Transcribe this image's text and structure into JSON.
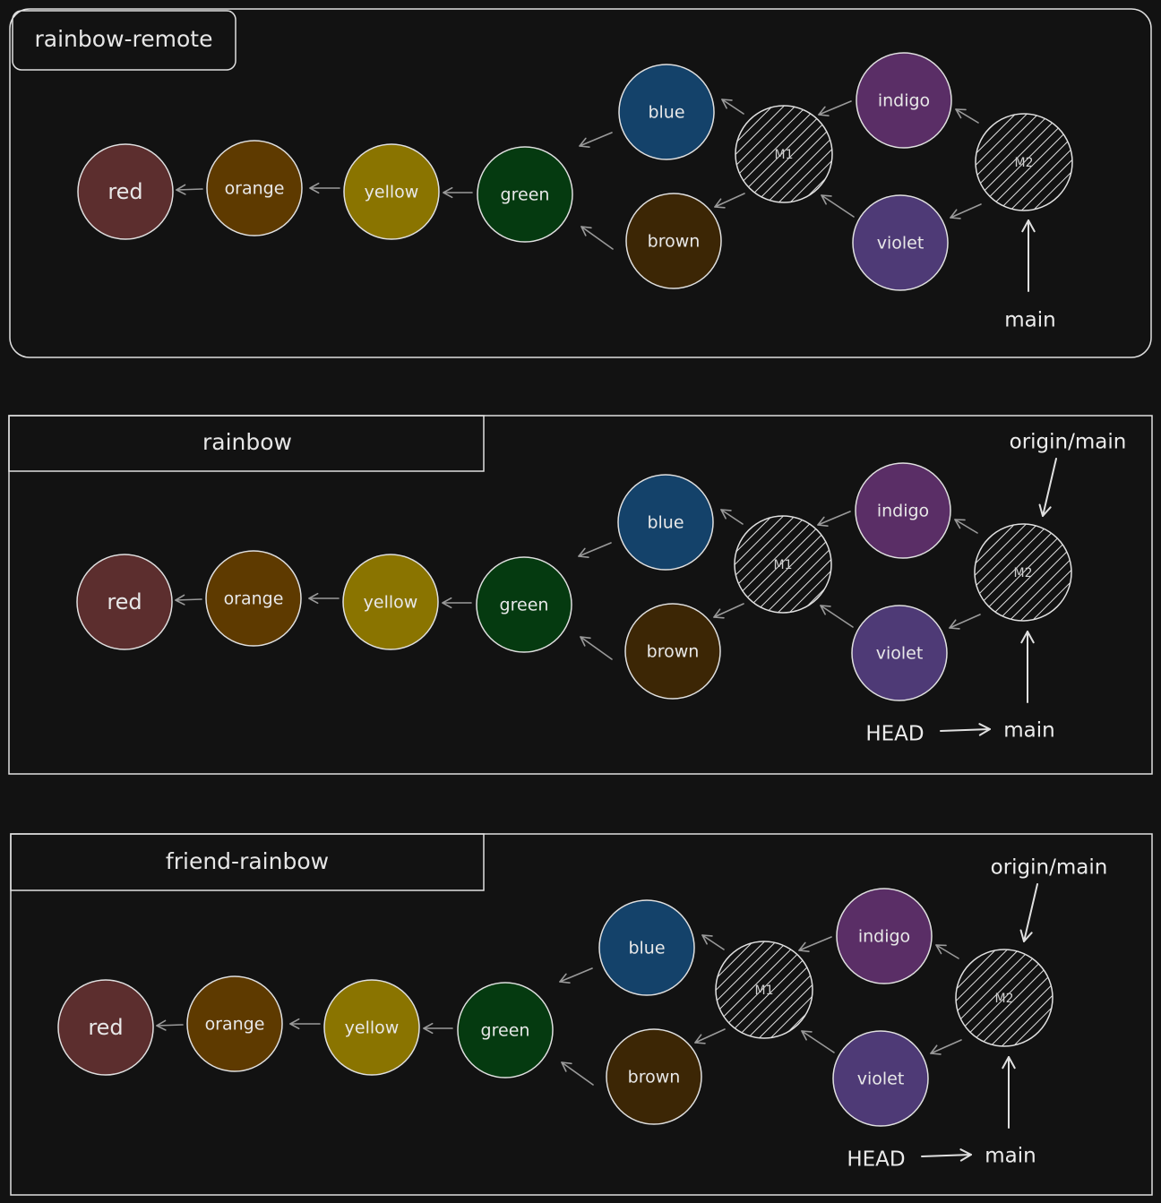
{
  "colors": {
    "background": "#121212",
    "stroke": "#e0e0e0",
    "arrow": "#9a9a9a",
    "red": "#5c2e2e",
    "orange": "#5e3a00",
    "yellow": "#8a7400",
    "green": "#053a10",
    "blue": "#14426a",
    "brown": "#3c2605",
    "indigo": "#5a2e66",
    "violet": "#4e3a76"
  },
  "panels": [
    {
      "label": "rainbow-remote",
      "nodes": {
        "red": "red",
        "orange": "orange",
        "yellow": "yellow",
        "green": "green",
        "blue": "blue",
        "brown": "brown",
        "m1": "M1",
        "indigo": "indigo",
        "violet": "violet",
        "m2": "M2"
      },
      "refs": {
        "main": "main"
      }
    },
    {
      "label": "rainbow",
      "nodes": {
        "red": "red",
        "orange": "orange",
        "yellow": "yellow",
        "green": "green",
        "blue": "blue",
        "brown": "brown",
        "m1": "M1",
        "indigo": "indigo",
        "violet": "violet",
        "m2": "M2"
      },
      "refs": {
        "origin": "origin/main",
        "main": "main",
        "head": "HEAD"
      }
    },
    {
      "label": "friend-rainbow",
      "nodes": {
        "red": "red",
        "orange": "orange",
        "yellow": "yellow",
        "green": "green",
        "blue": "blue",
        "brown": "brown",
        "m1": "M1",
        "indigo": "indigo",
        "violet": "violet",
        "m2": "M2"
      },
      "refs": {
        "origin": "origin/main",
        "main": "main",
        "head": "HEAD"
      }
    }
  ]
}
